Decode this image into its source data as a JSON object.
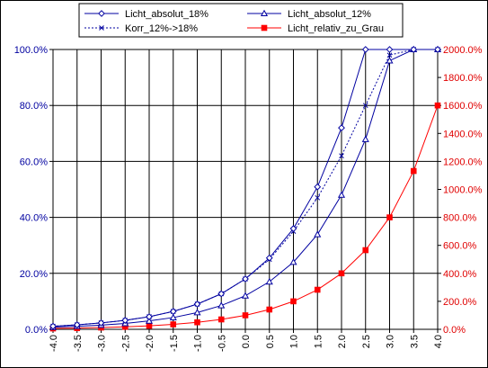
{
  "chart_data": {
    "type": "line",
    "x": [
      -4.0,
      -3.5,
      -3.0,
      -2.5,
      -2.0,
      -1.5,
      -1.0,
      -0.5,
      0.0,
      0.5,
      1.0,
      1.5,
      2.0,
      2.5,
      3.0,
      3.5,
      4.0
    ],
    "x_tick_labels": [
      "-4.0",
      "-3.5",
      "-3.0",
      "-2.5",
      "-2.0",
      "-1.5",
      "-1.0",
      "-0.5",
      "0.0",
      "0.5",
      "1.0",
      "1.5",
      "2.0",
      "2.5",
      "3.0",
      "3.5",
      "4.0"
    ],
    "y_left": {
      "range": [
        0,
        100
      ],
      "ticks": [
        0,
        20,
        40,
        60,
        80,
        100
      ],
      "tick_labels": [
        "0.0%",
        "20.0%",
        "40.0%",
        "60.0%",
        "80.0%",
        "100.0%"
      ]
    },
    "y_right": {
      "range": [
        0,
        2000
      ],
      "ticks": [
        0,
        200,
        400,
        600,
        800,
        1000,
        1200,
        1400,
        1600,
        1800,
        2000
      ],
      "tick_labels": [
        "0.0%",
        "200.0%",
        "400.0%",
        "600.0%",
        "800.0%",
        "1000.0%",
        "1200.0%",
        "1400.0%",
        "1600.0%",
        "1800.0%",
        "2000.0%"
      ]
    },
    "grid": "vertical and horizontal",
    "legend_position": "top",
    "series": [
      {
        "name": "Licht_absolut_18%",
        "axis": "left",
        "color": "#0000a0",
        "marker": "diamond",
        "dash": "solid",
        "values": [
          1.1,
          1.6,
          2.3,
          3.2,
          4.5,
          6.4,
          9.0,
          12.7,
          18.0,
          25.5,
          36.0,
          50.9,
          72.0,
          100,
          100,
          100,
          100
        ]
      },
      {
        "name": "Licht_absolut_12%",
        "axis": "left",
        "color": "#0000a0",
        "marker": "triangle",
        "dash": "solid",
        "values": [
          0.75,
          1.1,
          1.5,
          2.1,
          3.0,
          4.2,
          6.0,
          8.5,
          12.0,
          17.0,
          24.0,
          33.9,
          48.0,
          67.9,
          96.0,
          100,
          100
        ]
      },
      {
        "name": "Korr_12%->18%",
        "axis": "left",
        "color": "#0000a0",
        "marker": "x",
        "dash": "dotted",
        "values": [
          1.1,
          1.6,
          2.3,
          3.2,
          4.5,
          6.4,
          9.0,
          12.7,
          18.0,
          25.0,
          35.0,
          47.0,
          62.0,
          80.0,
          98.0,
          100,
          100
        ]
      },
      {
        "name": "Licht_relativ_zu_Grau",
        "axis": "right",
        "color": "#ff0000",
        "marker": "square",
        "dash": "solid",
        "values": [
          6.25,
          8.8,
          12.5,
          17.7,
          25.0,
          35.4,
          50.0,
          70.7,
          100,
          141.4,
          200,
          282.8,
          400,
          565.7,
          800,
          1131.4,
          1600
        ]
      }
    ]
  }
}
